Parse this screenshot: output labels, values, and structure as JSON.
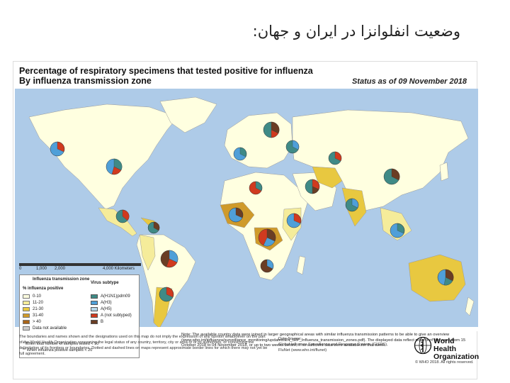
{
  "slide": {
    "title": "وضعیت انفلوانزا در ایران و جهان:"
  },
  "map": {
    "title_line1": "Percentage of respiratory specimens that tested positive for influenza",
    "title_line2": "By influenza transmission zone",
    "status": "Status as of 09 November 2018",
    "scalebar": {
      "ticks": [
        "0",
        "1,000",
        "2,000",
        "4,000 Kilometers"
      ]
    },
    "legend": {
      "zone_header": "Influenza transmission zone",
      "positive_header": "% influenza positive",
      "positive_classes": [
        {
          "label": "0-10",
          "color": "#ffffe0"
        },
        {
          "label": "11-20",
          "color": "#f5ec9a"
        },
        {
          "label": "21-30",
          "color": "#e8c840"
        },
        {
          "label": "31-40",
          "color": "#cf9a2a"
        },
        {
          "label": "> 40",
          "color": "#a86418"
        },
        {
          "label": "Data not available",
          "color": "#cccccc"
        }
      ],
      "virus_header": "Virus subtype",
      "virus_types": [
        {
          "label": "A(H1N1)pdm09",
          "color": "#3f8a86"
        },
        {
          "label": "A(H3)",
          "color": "#4f9fd8"
        },
        {
          "label": "A(H5)",
          "color": "#b6d7ea"
        },
        {
          "label": "A (not subtyped)",
          "color": "#d03a1f"
        },
        {
          "label": "B",
          "color": "#6a3d24"
        }
      ],
      "footnote_1": "* When total number of samples tested < 10",
      "footnote_2": "** When influenza positive samples < 20"
    },
    "notes": "Note: The available country data were joined in larger geographical areas with similar influenza transmission patterns to be able to give an overview (www.who.int/influenza/surveillance_monitoring/updates/EN_GIP_Influenza_transmission_zones.pdf). The displayed data reflect reports of the week from 15 October 2018 to 04 November 2018, or up to two weeks before, if no sufficient data were available for that week.",
    "disclaimer": "The boundaries and names shown and the designations used on this map do not imply the expression of any opinion whatsoever on the part of the World Health Organization concerning the legal status of any country, territory, city or area or of its authorities, or concerning the delimitation of its frontiers or boundaries. Dotted and dashed lines on maps represent approximate border lines for which there may not yet be full agreement.",
    "data_source_label": "Data Source:",
    "data_source_1": "Global Influenza Surveillance and Response System (GISRS),",
    "data_source_2": "FluNet (www.who.int/flunet)",
    "who_line1": "World Health",
    "who_line2": "Organization",
    "copyright": "© WHO 2018. All rights reserved."
  },
  "colors": {
    "ocean": "#aecbe8",
    "land_default": "#ffffe0",
    "land_low": "#f5ec9a",
    "land_mid": "#e8c840",
    "land_high": "#cf9a2a",
    "land_na": "#cccccc"
  }
}
